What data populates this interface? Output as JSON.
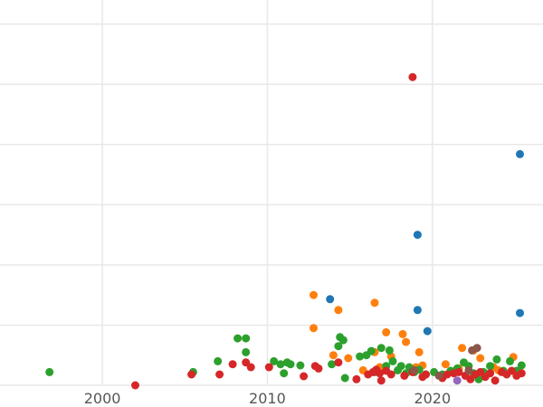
{
  "chart_data": {
    "type": "scatter",
    "title": "",
    "xlabel": "",
    "ylabel": "",
    "xlim": [
      1993.8,
      2026.7
    ],
    "ylim": [
      0,
      640
    ],
    "x_ticks": [
      2000,
      2010,
      2020
    ],
    "x_tick_labels": [
      "2000",
      "2010",
      "2020"
    ],
    "y_gridlines": [
      0,
      100,
      200,
      300,
      400,
      500,
      600
    ],
    "grid": true,
    "legend": "none",
    "colors": {
      "blue": "#1f77b4",
      "orange": "#ff7f0e",
      "green": "#2ca02c",
      "red": "#d62728",
      "purple": "#9467bd",
      "brown": "#8c564b"
    },
    "series": [
      {
        "color": "#1f77b4",
        "points": [
          [
            2013.8,
            143
          ],
          [
            2019.1,
            125
          ],
          [
            2019.1,
            250
          ],
          [
            2019.7,
            90
          ],
          [
            2025.3,
            384
          ],
          [
            2025.3,
            120
          ]
        ]
      },
      {
        "color": "#ff7f0e",
        "points": [
          [
            2012.8,
            150
          ],
          [
            2012.8,
            95
          ],
          [
            2014.3,
            125
          ],
          [
            2014.0,
            50
          ],
          [
            2014.9,
            45
          ],
          [
            2016.5,
            137
          ],
          [
            2016.5,
            55
          ],
          [
            2017.2,
            88
          ],
          [
            2017.5,
            48
          ],
          [
            2018.2,
            85
          ],
          [
            2018.4,
            72
          ],
          [
            2019.2,
            55
          ],
          [
            2019.4,
            33
          ],
          [
            2020.8,
            35
          ],
          [
            2021.8,
            62
          ],
          [
            2022.5,
            58
          ],
          [
            2022.9,
            45
          ],
          [
            2024.9,
            47
          ],
          [
            2024.0,
            25
          ],
          [
            2015.8,
            25
          ],
          [
            2016.8,
            30
          ],
          [
            2019.0,
            30
          ],
          [
            2021.6,
            28
          ],
          [
            2023.7,
            30
          ]
        ]
      },
      {
        "color": "#2ca02c",
        "points": [
          [
            1996.8,
            22
          ],
          [
            2005.5,
            22
          ],
          [
            2007.0,
            40
          ],
          [
            2008.2,
            78
          ],
          [
            2008.7,
            78
          ],
          [
            2008.7,
            55
          ],
          [
            2010.4,
            40
          ],
          [
            2010.8,
            35
          ],
          [
            2011.0,
            20
          ],
          [
            2011.2,
            38
          ],
          [
            2011.4,
            35
          ],
          [
            2012.0,
            33
          ],
          [
            2013.9,
            35
          ],
          [
            2014.3,
            65
          ],
          [
            2014.4,
            80
          ],
          [
            2014.6,
            75
          ],
          [
            2014.7,
            12
          ],
          [
            2015.6,
            48
          ],
          [
            2016.0,
            50
          ],
          [
            2016.3,
            57
          ],
          [
            2016.5,
            22
          ],
          [
            2016.9,
            62
          ],
          [
            2017.2,
            32
          ],
          [
            2017.4,
            58
          ],
          [
            2017.6,
            40
          ],
          [
            2017.9,
            25
          ],
          [
            2018.1,
            32
          ],
          [
            2018.4,
            20
          ],
          [
            2018.6,
            30
          ],
          [
            2018.9,
            22
          ],
          [
            2019.2,
            26
          ],
          [
            2019.6,
            18
          ],
          [
            2020.1,
            22
          ],
          [
            2020.6,
            18
          ],
          [
            2021.1,
            24
          ],
          [
            2021.5,
            28
          ],
          [
            2021.9,
            38
          ],
          [
            2022.2,
            32
          ],
          [
            2022.5,
            20
          ],
          [
            2022.8,
            10
          ],
          [
            2023.1,
            22
          ],
          [
            2023.5,
            32
          ],
          [
            2023.9,
            43
          ],
          [
            2024.3,
            24
          ],
          [
            2024.7,
            40
          ],
          [
            2025.1,
            24
          ],
          [
            2025.4,
            33
          ]
        ]
      },
      {
        "color": "#d62728",
        "points": [
          [
            2002.0,
            0
          ],
          [
            2005.4,
            18
          ],
          [
            2007.1,
            18
          ],
          [
            2007.9,
            35
          ],
          [
            2008.7,
            38
          ],
          [
            2009.0,
            30
          ],
          [
            2010.1,
            30
          ],
          [
            2012.2,
            15
          ],
          [
            2012.9,
            32
          ],
          [
            2013.1,
            28
          ],
          [
            2014.3,
            38
          ],
          [
            2015.4,
            10
          ],
          [
            2016.1,
            18
          ],
          [
            2016.4,
            22
          ],
          [
            2016.6,
            26
          ],
          [
            2016.8,
            20
          ],
          [
            2016.9,
            8
          ],
          [
            2017.2,
            24
          ],
          [
            2017.5,
            18
          ],
          [
            2018.3,
            16
          ],
          [
            2018.8,
            22
          ],
          [
            2019.4,
            14
          ],
          [
            2019.6,
            18
          ],
          [
            2018.8,
            512
          ],
          [
            2020.6,
            12
          ],
          [
            2020.9,
            18
          ],
          [
            2021.3,
            20
          ],
          [
            2021.6,
            22
          ],
          [
            2022.0,
            16
          ],
          [
            2022.3,
            10
          ],
          [
            2022.6,
            18
          ],
          [
            2022.9,
            22
          ],
          [
            2023.2,
            14
          ],
          [
            2023.5,
            20
          ],
          [
            2023.8,
            8
          ],
          [
            2024.2,
            22
          ],
          [
            2024.5,
            18
          ],
          [
            2024.8,
            24
          ],
          [
            2025.1,
            16
          ],
          [
            2025.4,
            20
          ]
        ]
      },
      {
        "color": "#9467bd",
        "points": [
          [
            2021.5,
            8
          ]
        ]
      },
      {
        "color": "#8c564b",
        "points": [
          [
            2018.9,
            25
          ],
          [
            2020.4,
            16
          ],
          [
            2022.2,
            25
          ],
          [
            2022.4,
            58
          ],
          [
            2022.7,
            62
          ]
        ]
      }
    ]
  }
}
